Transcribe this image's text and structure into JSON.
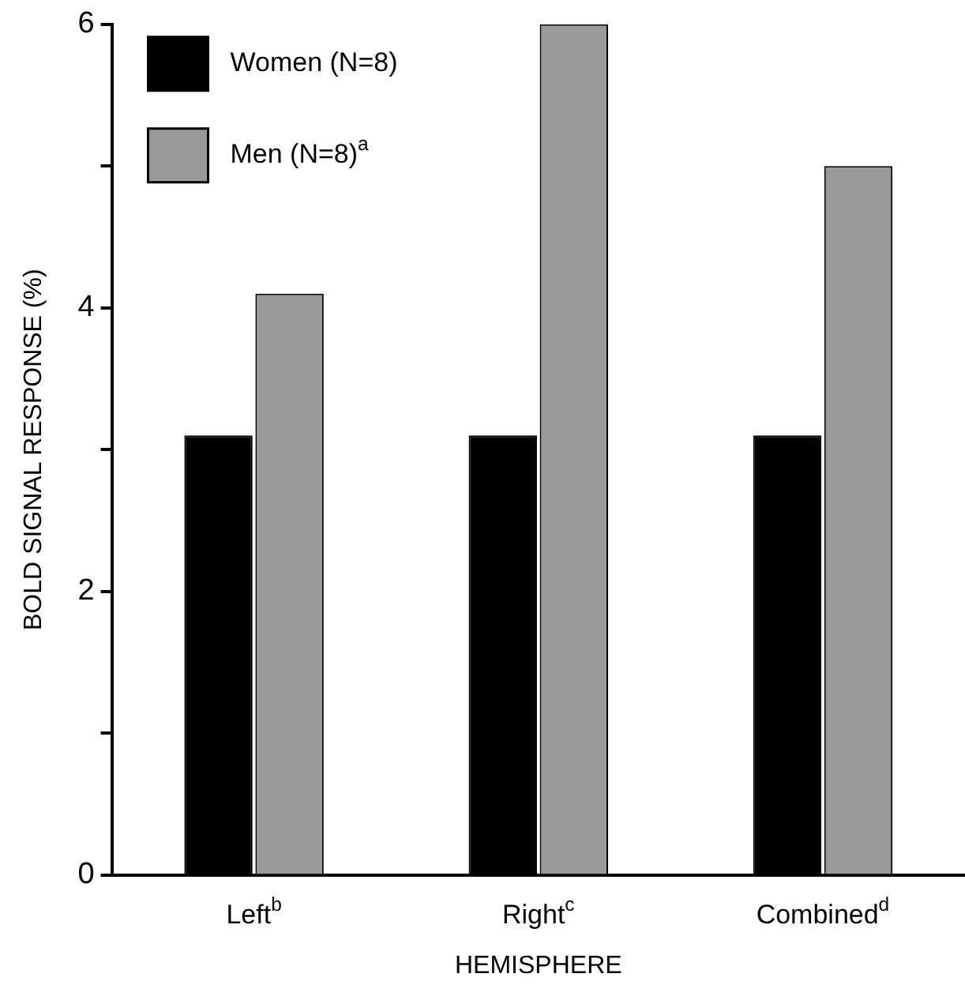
{
  "chart_data": {
    "type": "bar",
    "xlabel": "HEMISPHERE",
    "ylabel": "BOLD SIGNAL RESPONSE (%)",
    "categories": [
      "Left$^{b}$",
      "Right$^{c}$",
      "Combined$^{d}$"
    ],
    "series": [
      {
        "name": "Women (N=8)",
        "color": "#000000",
        "values": [
          3.1,
          3.1,
          3.1
        ]
      },
      {
        "name": "Men (N=8)$^{a}$",
        "color": "#999999",
        "values": [
          4.1,
          6.0,
          5.0
        ]
      }
    ],
    "ylim": [
      0,
      6
    ],
    "yticks": [
      0,
      {
        "value": 1,
        "label": null
      },
      2,
      {
        "value": 3,
        "label": null
      },
      4,
      {
        "value": 5,
        "label": null
      },
      6
    ],
    "legend": "top left",
    "grid": false
  }
}
